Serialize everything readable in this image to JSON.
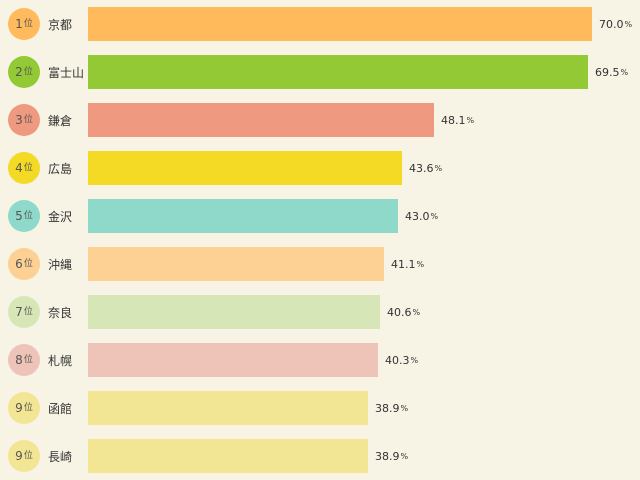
{
  "chart_data": {
    "type": "bar",
    "orientation": "horizontal",
    "rank_suffix": "位",
    "unit": "%",
    "categories": [
      "京都",
      "富士山",
      "鎌倉",
      "広島",
      "金沢",
      "沖縄",
      "奈良",
      "札幌",
      "函館",
      "長崎"
    ],
    "ranks": [
      "1",
      "2",
      "3",
      "4",
      "5",
      "6",
      "7",
      "8",
      "9",
      "9"
    ],
    "values": [
      70.0,
      69.5,
      48.1,
      43.6,
      43.0,
      41.1,
      40.6,
      40.3,
      38.9,
      38.9
    ],
    "value_labels": [
      "70.0",
      "69.5",
      "48.1",
      "43.6",
      "43.0",
      "41.1",
      "40.6",
      "40.3",
      "38.9",
      "38.9"
    ],
    "colors": [
      "#ffbb5b",
      "#92c935",
      "#ef9a80",
      "#f4da24",
      "#8fd9cb",
      "#fdd093",
      "#d6e6b7",
      "#eec4b8",
      "#f2e593",
      "#f2e593"
    ],
    "badge_colors": [
      "#ffbb5b",
      "#92c935",
      "#ef9a80",
      "#f4da24",
      "#8fd9cb",
      "#fdd093",
      "#d6e6b7",
      "#eec4b8",
      "#f2e593",
      "#f2e593"
    ],
    "xlim": [
      0,
      70.0
    ],
    "grid": false,
    "legend": "none"
  }
}
